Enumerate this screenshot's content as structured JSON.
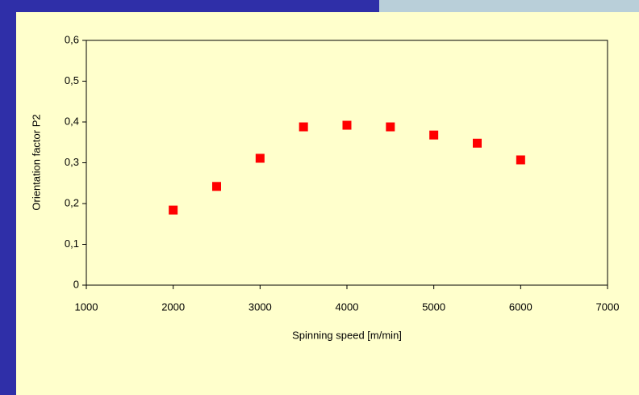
{
  "chart_data": {
    "type": "scatter",
    "x_label": "Spinning speed [m/min]",
    "y_label": "Orientation factor  P2",
    "x": [
      2000,
      2500,
      3000,
      3500,
      4000,
      4500,
      5000,
      5500,
      6000
    ],
    "series": [
      {
        "color": "#ff0000",
        "values": [
          0.184,
          0.242,
          0.311,
          0.388,
          0.392,
          0.388,
          0.368,
          0.348,
          0.307
        ]
      }
    ],
    "xlim": [
      1000,
      7000
    ],
    "xticks": [
      1000,
      2000,
      3000,
      4000,
      5000,
      6000,
      7000
    ],
    "ylim": [
      0,
      0.6
    ],
    "yticks": [
      0,
      {
        "value": 0.1,
        "label": "0,1"
      },
      {
        "value": 0.2,
        "label": "0,2"
      },
      {
        "value": 0.3,
        "label": "0,3"
      },
      {
        "value": 0.4,
        "label": "0,4"
      },
      {
        "value": 0.5,
        "label": "0,5"
      },
      {
        "value": 0.6,
        "label": "0,6"
      }
    ],
    "grid": false
  }
}
